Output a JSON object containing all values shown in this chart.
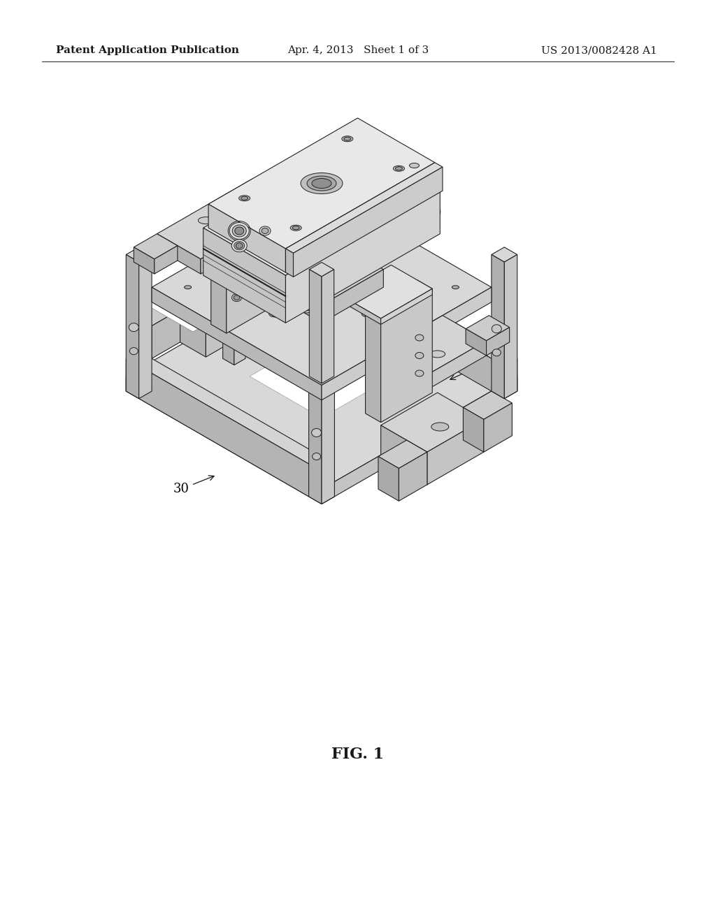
{
  "background_color": "#ffffff",
  "header_left": "Patent Application Publication",
  "header_middle": "Apr. 4, 2013   Sheet 1 of 3",
  "header_right": "US 2013/0082428 A1",
  "header_fontsize": 11,
  "fig_caption": "FIG. 1",
  "fig_caption_fontsize": 16,
  "label_fontsize": 13,
  "line_color": "#1a1a1a",
  "edge_color": "#222222",
  "face_light": "#e8e8e8",
  "face_mid": "#d0d0d0",
  "face_dark": "#b8b8b8",
  "face_darker": "#a0a0a0"
}
